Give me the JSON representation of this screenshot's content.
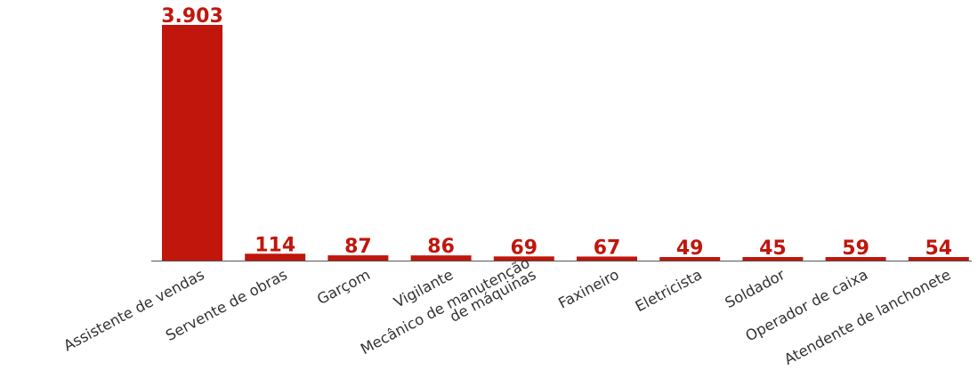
{
  "chart_data": {
    "type": "bar",
    "categories": [
      "Assistente de vendas",
      "Servente de obras",
      "Garçom",
      "Vigilante",
      "Mecânico de manutenção de máquinas",
      "Faxineiro",
      "Eletricista",
      "Soldador",
      "Operador de caixa",
      "Atendente de lanchonete"
    ],
    "category_lines": [
      [
        "Assistente de vendas"
      ],
      [
        "Servente de obras"
      ],
      [
        "Garçom"
      ],
      [
        "Vigilante"
      ],
      [
        "Mecânico de manutenção",
        "de máquinas"
      ],
      [
        "Faxineiro"
      ],
      [
        "Eletricista"
      ],
      [
        "Soldador"
      ],
      [
        "Operador de caixa"
      ],
      [
        "Atendente de lanchonete"
      ]
    ],
    "values": [
      3903,
      114,
      87,
      86,
      69,
      67,
      49,
      45,
      59,
      54
    ],
    "value_labels": [
      "3.903",
      "114",
      "87",
      "86",
      "69",
      "67",
      "49",
      "45",
      "59",
      "54"
    ],
    "title": "",
    "xlabel": "",
    "ylabel": "",
    "ylim": [
      0,
      3903
    ],
    "grid": false,
    "legend": "none",
    "colors": {
      "bar": "#c0160c",
      "value_label": "#c0160c",
      "axis": "#555555",
      "category_label": "#333333"
    }
  }
}
